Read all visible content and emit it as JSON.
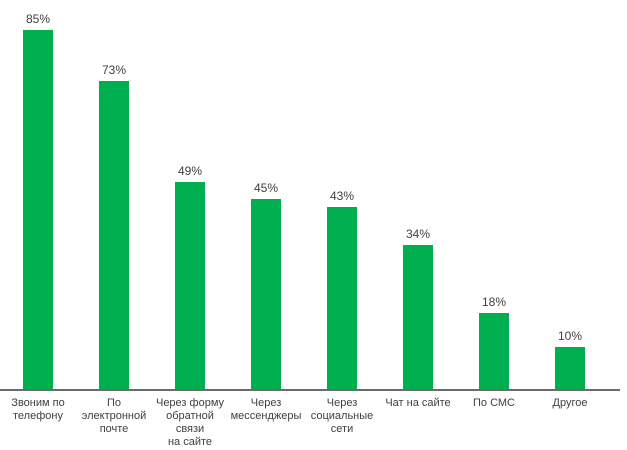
{
  "chart_data": {
    "type": "bar",
    "title": "",
    "xlabel": "",
    "ylabel": "",
    "unit": "%",
    "ylim": [
      0,
      100
    ],
    "grid": false,
    "legend": false,
    "background_color": "#ffffff",
    "bar_color": "#00b050",
    "axis_line_color": "#6b6b6b",
    "label_color": "#404040",
    "categories": [
      "Звоним по телефону",
      "По электронной почте",
      "Через форму обратной связи на сайте",
      "Через мессенджеры",
      "Через социальные сети",
      "Чат на сайте",
      "По СМС",
      "Другое"
    ],
    "category_display": [
      "Звоним по\nтелефону",
      "По\nэлектронной\nпочте",
      "Через форму\nобратной связи\nна сайте",
      "Через\nмессенджеры",
      "Через\nсоциальные\nсети",
      "Чат на сайте",
      "По СМС",
      "Другое"
    ],
    "values": [
      85,
      73,
      49,
      45,
      43,
      34,
      18,
      10
    ],
    "value_labels": [
      "85%",
      "73%",
      "49%",
      "45%",
      "43%",
      "34%",
      "18%",
      "10%"
    ]
  }
}
